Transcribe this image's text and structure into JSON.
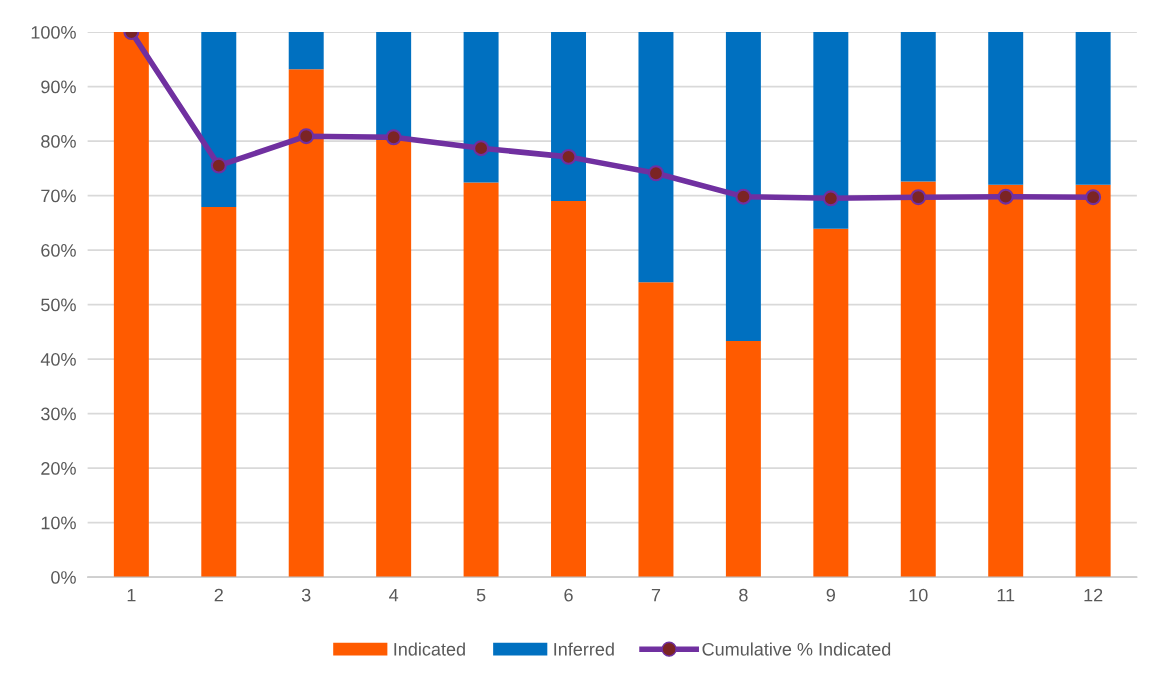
{
  "chart_data": {
    "type": "bar",
    "stacked": true,
    "categories": [
      "1",
      "2",
      "3",
      "4",
      "5",
      "6",
      "7",
      "8",
      "9",
      "10",
      "11",
      "12"
    ],
    "series": [
      {
        "name": "Indicated",
        "color": "#ff5b00",
        "values": [
          100,
          67.9,
          93.2,
          80.2,
          72.4,
          69.0,
          54.1,
          43.3,
          63.9,
          72.6,
          72.0,
          72.0
        ]
      },
      {
        "name": "Inferred",
        "color": "#0070c0",
        "values": [
          0,
          32.1,
          6.8,
          19.8,
          27.6,
          31.0,
          45.9,
          56.7,
          36.1,
          27.4,
          28.0,
          28.0
        ]
      },
      {
        "name": "Cumulative % Indicated",
        "type": "line",
        "color": "#7030a0",
        "marker": "circle",
        "values": [
          100,
          75.5,
          80.9,
          80.7,
          78.7,
          77.1,
          74.1,
          69.8,
          69.5,
          69.7,
          69.8,
          69.7
        ]
      }
    ],
    "ylim": [
      0,
      100
    ],
    "yticks": [
      {
        "value": 0,
        "label": "0%"
      },
      {
        "value": 10,
        "label": "10%"
      },
      {
        "value": 20,
        "label": "20%"
      },
      {
        "value": 30,
        "label": "30%"
      },
      {
        "value": 40,
        "label": "40%"
      },
      {
        "value": 50,
        "label": "50%"
      },
      {
        "value": 60,
        "label": "60%"
      },
      {
        "value": 70,
        "label": "70%"
      },
      {
        "value": 80,
        "label": "80%"
      },
      {
        "value": 90,
        "label": "90%"
      },
      {
        "value": 100,
        "label": "100%"
      }
    ],
    "grid": "y",
    "legend": "bottom"
  }
}
